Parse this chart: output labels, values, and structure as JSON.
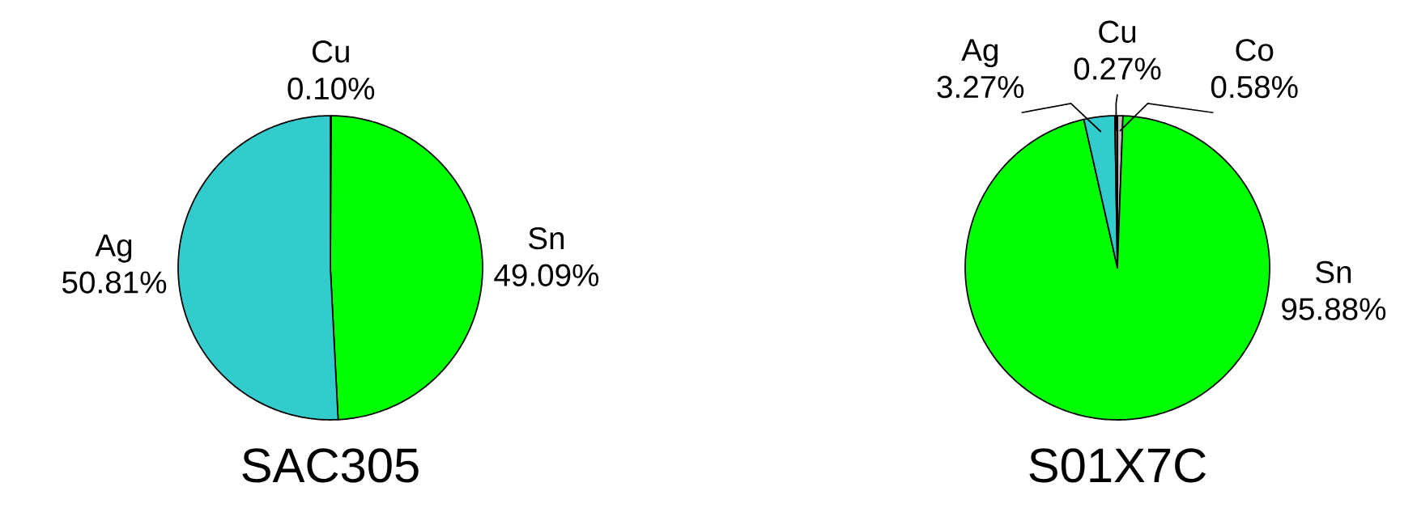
{
  "chart_data": [
    {
      "type": "pie",
      "title": "SAC305",
      "categories": [
        "Cu",
        "Sn",
        "Ag"
      ],
      "values": [
        0.1,
        49.09,
        50.81
      ],
      "colors": [
        "#8b4513",
        "#00ff00",
        "#33cccc"
      ],
      "value_labels": [
        "0.10%",
        "49.09%",
        "50.81%"
      ]
    },
    {
      "type": "pie",
      "title": "S01X7C",
      "categories": [
        "Co",
        "Sn",
        "Ag",
        "Cu"
      ],
      "values": [
        0.58,
        95.88,
        3.27,
        0.27
      ],
      "colors": [
        "#c0c0c0",
        "#00ff00",
        "#33cccc",
        "#8b4513"
      ],
      "value_labels": [
        "0.58%",
        "95.88%",
        "3.27%",
        "0.27%"
      ]
    }
  ]
}
